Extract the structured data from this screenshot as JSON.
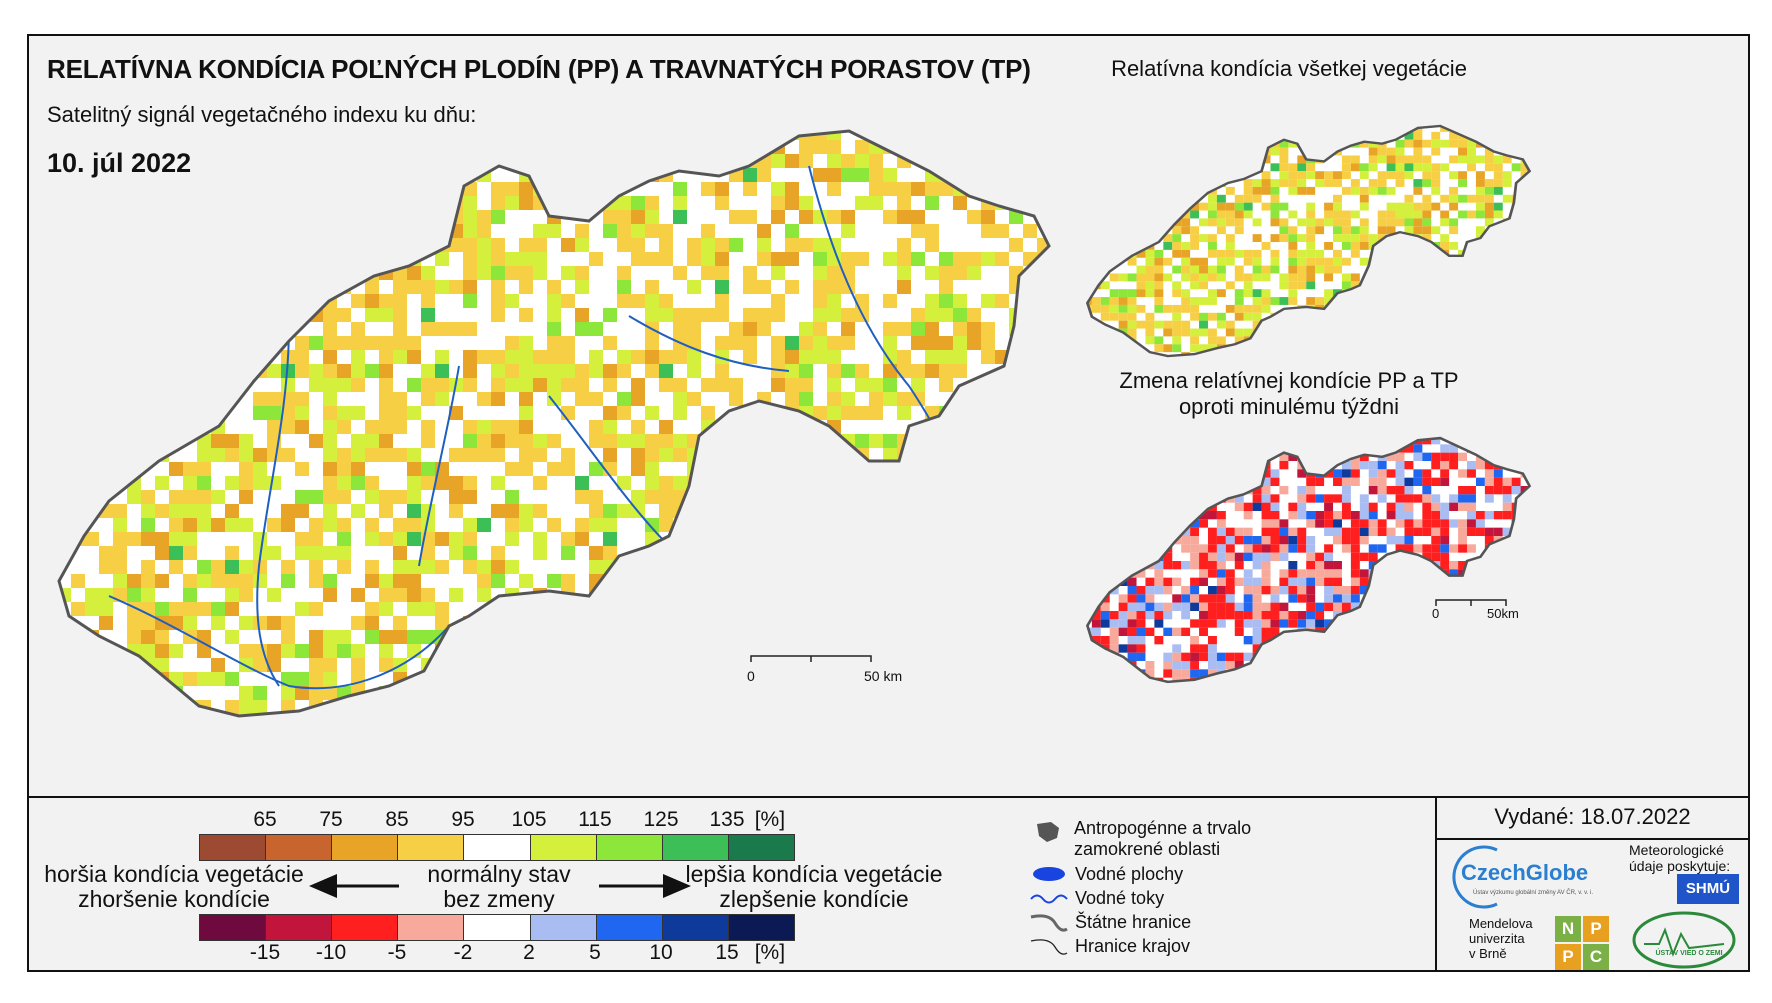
{
  "header": {
    "title": "RELATÍVNA KONDÍCIA POĽNÝCH PLODÍN (PP) A TRAVNATÝCH PORASTOV (TP)",
    "subtitle": "Satelitný signál vegetačného indexu ku dňu:",
    "date": "10. júl 2022"
  },
  "side_maps": {
    "top_title": "Relatívna kondícia všetkej vegetácie",
    "bottom_title_line1": "Zmena relatívnej kondície PP a TP",
    "bottom_title_line2": "oproti minulému týždni"
  },
  "scale_main": {
    "zero": "0",
    "label": "50 km"
  },
  "scale_small": {
    "zero": "0",
    "label": "50km"
  },
  "legend": {
    "condition_ticks": [
      "65",
      "75",
      "85",
      "95",
      "105",
      "115",
      "125",
      "135",
      "[%]"
    ],
    "condition_colors": [
      "#9c4a32",
      "#c8642e",
      "#e8a427",
      "#f7cf45",
      "#ffffff",
      "#d4f03c",
      "#8de63a",
      "#3cbf57",
      "#1a7a4c"
    ],
    "change_ticks": [
      "-15",
      "-10",
      "-5",
      "-2",
      "2",
      "5",
      "10",
      "15",
      "[%]"
    ],
    "change_colors": [
      "#6e0a3e",
      "#c2153b",
      "#ff1f1f",
      "#f7a99b",
      "#ffffff",
      "#a9bdf3",
      "#1f66f0",
      "#0d3a9b",
      "#0b1a55"
    ],
    "left_text_1": "horšia kondícia vegetácie",
    "left_text_2": "zhoršenie kondície",
    "center_text_1": "normálny stav",
    "center_text_2": "bez zmeny",
    "right_text_1": "lepšia kondícia vegetácie",
    "right_text_2": "zlepšenie kondície",
    "symbols": [
      {
        "icon": "urban-area-icon",
        "label": "Antropogénne a trvalo zamokrené oblasti"
      },
      {
        "icon": "water-body-icon",
        "label": "Vodné plochy"
      },
      {
        "icon": "river-icon",
        "label": "Vodné toky"
      },
      {
        "icon": "state-border-icon",
        "label": "Štátne hranice"
      },
      {
        "icon": "region-border-icon",
        "label": "Hranice krajov"
      }
    ]
  },
  "footer": {
    "issued": "Vydané: 18.07.2022",
    "czechglobe": "CzechGlobe",
    "czechglobe_sub": "Ústav výzkumu globální změny AV ČR, v. v. i.",
    "meteo_text": "Meteorologické údaje poskytuje:",
    "shmu": "SHMÚ",
    "mendel_lines": [
      "Mendelova",
      "univerzita",
      "v Brně"
    ],
    "npc_letters": [
      "N",
      "P",
      "P",
      "C"
    ],
    "uvz": "ÚSTAV VIED O ZEMI"
  }
}
